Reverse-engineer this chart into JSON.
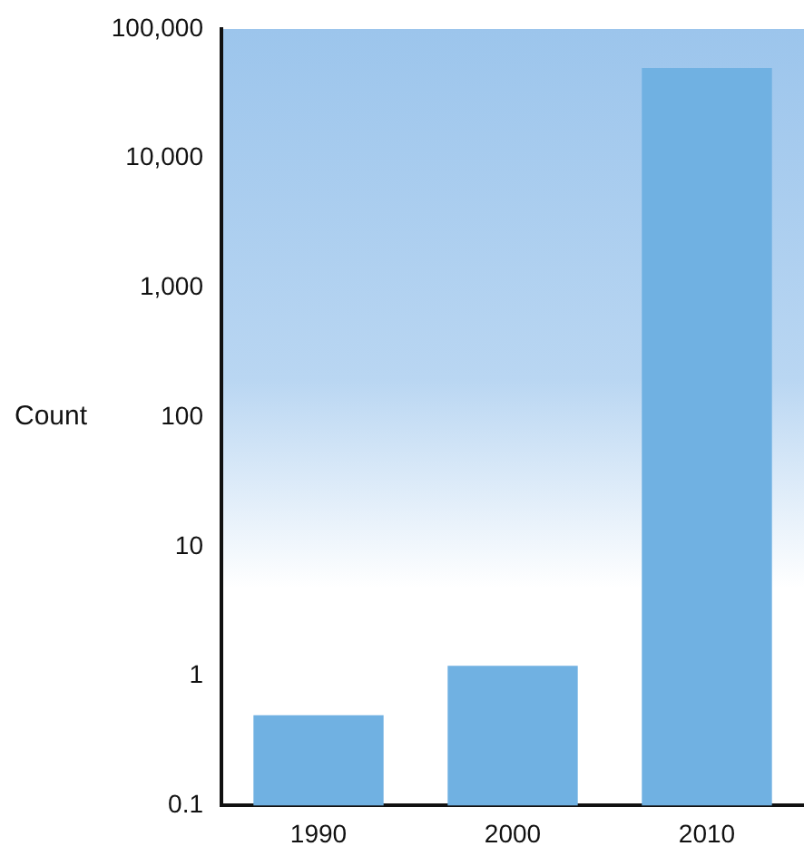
{
  "chart_data": {
    "type": "bar",
    "ylabel": "Count",
    "categories": [
      "1990",
      "2000",
      "2010"
    ],
    "values": [
      0.5,
      1.2,
      50000
    ],
    "color": "#70b1e2",
    "log": true,
    "ylim": [
      0.1,
      100000
    ],
    "yticks": [
      0.1,
      1,
      10,
      100,
      {
        "value": 1000,
        "label": "1,000"
      },
      {
        "value": 10000,
        "label": "10,000"
      },
      {
        "value": 100000,
        "label": "100,000"
      }
    ],
    "grid": false,
    "legend": false
  }
}
